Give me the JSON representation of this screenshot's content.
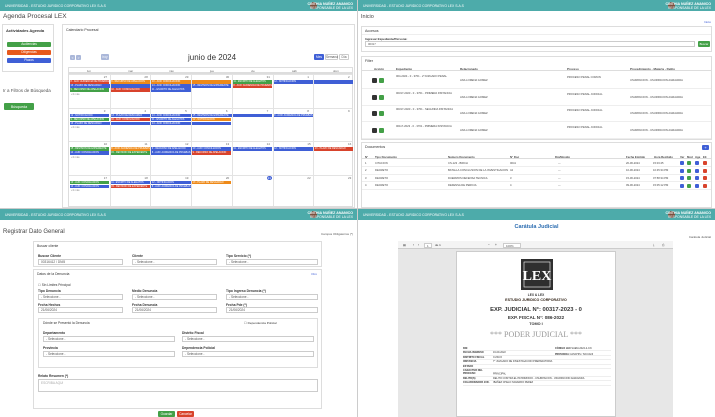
{
  "app": {
    "brand": "UNIVERSIDAD - ESTUDIO JURIDICO CORPORATIVO LEX S.A.S",
    "user_name": "CINTHIA NUÑEZ ANANICO",
    "user_role": "RESPONSABLE DE LA LEX"
  },
  "q1": {
    "page_title": "Agenda Procesal LEX",
    "side_title": "Actividades Agenda",
    "side_buttons": [
      "Audiencias",
      "Diligencias",
      "Plazos"
    ],
    "filter_label": "Ir a Filtros de Búsqueda",
    "search_label": "Búsqueda",
    "cal_header": "Calendario Procesal",
    "month": "junio de 2024",
    "nav": [
      "<",
      ">",
      "hoy"
    ],
    "views": [
      "Mes",
      "Semana",
      "Día"
    ],
    "days": [
      "lun",
      "mar",
      "mié",
      "jue",
      "vie",
      "sáb",
      "dom"
    ],
    "weeks": [
      {
        "dates": [
          "27",
          "28",
          "29",
          "30",
          "31",
          "1",
          "2"
        ]
      },
      {
        "dates": [
          "3",
          "4",
          "5",
          "6",
          "7",
          "8",
          "9"
        ]
      },
      {
        "dates": [
          "10",
          "11",
          "12",
          "13",
          "14",
          "15",
          "16"
        ]
      },
      {
        "dates": [
          "17",
          "18",
          "19",
          "20",
          "21",
          "22",
          "23"
        ]
      }
    ],
    "more": "+3 más",
    "ev_text": {
      "a": "8 - AUD: AUDIENCIA DE PRUEBAS",
      "b": "9 - RECURSO DE APELACION",
      "c": "10 - AUD: CONCILIACION",
      "d": "11 - ESCRITO DE ALEGATOS",
      "e": "12 - NOTIFICACION",
      "f": "13 - PLAZO DE DESCARGO",
      "g": "14 - AUD: CONCILIACION",
      "h": "15 - REVISION DE EXPEDIENTE"
    }
  },
  "q2": {
    "page_title": "Inicio",
    "crumb": "Inicio",
    "acc_title": "Accesos",
    "exp_label": "Ingresar Expediente/Persona:",
    "exp_value": "00317",
    "search_btn": "Buscar",
    "filter_title": "Filter",
    "headers": [
      "Acción",
      "Expediente",
      "Relacionado",
      "Proceso",
      "Procedimiento - Materia - Delito"
    ],
    "rows": [
      {
        "exp": "004-2024 - 0 - 3701 - 2°JUZGADO PENAL",
        "rel": "ANA LORENA GOMEZ",
        "proc": "PROCESO PENAL COMUN",
        "pm": "USURPACION - USURPACION AGRAVADA"
      },
      {
        "exp": "00317-2023 - 0 - 3701 - PRIMERA INSTANCIA",
        "rel": "ANA LORENA GOMEZ",
        "proc": "PROCESO PENAL JUDICIAL",
        "pm": "USURPACION - USURPACION AGRAVADA"
      },
      {
        "exp": "00317-2023 - 0 - 3701 - SEGUNDA INSTANCIA",
        "rel": "ANA LORENA GOMEZ",
        "proc": "PROCESO PENAL JUDICIAL",
        "pm": "USURPACION - USURPACION AGRAVADA"
      },
      {
        "exp": "00117-2023 - 0 - 3701 - PRIMERA INSTANCIA",
        "rel": "ANA LORENA GOMEZ",
        "proc": "PROCESO PENAL JUDICIAL",
        "pm": "USURPACION - USURPACION AGRAVADA"
      }
    ],
    "docs_title": "Documentos",
    "doc_headers": [
      "N°",
      "Tipo Documento",
      "Numero Documento",
      "N° Doc",
      "Dio/Movido",
      "Fecha Emitido",
      "Hora Recibido",
      "Ver",
      "Mod",
      "Age",
      "Eli"
    ],
    "docs": [
      {
        "n": "1",
        "tipo": "CITACION",
        "num": "CS-123 - BIRCH",
        "nd": "0041",
        "dio": "---",
        "fe": "20-06-2024",
        "hr": "15:03:45"
      },
      {
        "n": "2",
        "tipo": "DECRETO",
        "num": "BATALLA CONCLUSION DE LA INVESTIGACION",
        "nd": "44",
        "dio": "---",
        "fe": "10-06-2024",
        "hr": "10:45:34 PM"
      },
      {
        "n": "3",
        "tipo": "DECRETO",
        "num": "DUERMOS DEFENSA TECNICA",
        "nd": "3",
        "dio": "---",
        "fe": "15-06-2024",
        "hr": "07:58:34 PM"
      },
      {
        "n": "4",
        "tipo": "DECRETO",
        "num": "DEFENSA DE PERICIA",
        "nd": "4",
        "dio": "---",
        "fe": "09-06-2024",
        "hr": "15:05:12 PM"
      }
    ]
  },
  "q3": {
    "page_title": "Registrar Dato General",
    "required_note": "Campos Obligatorios (*)",
    "sec1": "Buscar cliente",
    "dni_label": "Buscar Cliente",
    "dni_value": "00316412 / DNI5",
    "cliente_label": "Cliente",
    "cliente_value": "- Seleccione -",
    "tipo_label": "Tipo Servicio (*)",
    "tipo_value": "- Seleccione -",
    "sec2": "Datos de la Denuncia",
    "save_label": "Guardar",
    "otra_label": "Otro",
    "chk_label": "Sin Limites Principal",
    "f_tipo_denuncia": "Tipo Denuncia",
    "f_medio": "Medio Denuncia",
    "f_tipo_ingreso": "Tipo Ingreso Denuncia (*)",
    "sel": "- Seleccione -",
    "f_hechos": "Fecha Hechos",
    "v_hechos": "21/06/2024",
    "f_denuncia": "Fecha Denuncia",
    "v_denuncia": "21/06/2024",
    "f_plazo": "Fecha Pde (*)",
    "v_plazo": "21/06/2024",
    "sec3": "Dónde se Presentó la Denuncia",
    "chk2": "Dependencia Policial",
    "f_dep": "Departamento",
    "f_dist": "Distrito Fiscal",
    "f_prov": "Provincia",
    "f_depol": "Dependencia Policial",
    "f_relato": "Relato Resumen (*)",
    "relato_ph": "ESCRIBA AQUI",
    "btn_save": "Guardar",
    "btn_cancel": "Cancelar"
  },
  "q4": {
    "page_title": "Carátula Judicial",
    "crumb1": "Carátula Judicial",
    "crumb2": "Carátula Judicial",
    "page_num": "1",
    "page_total": "de 1",
    "zoom": "100%",
    "firm": "ESTUDIO JURIDICO CORPORATIVO",
    "lex": "LEX & LEX",
    "exp_judicial": "EXP. JUDICIAL N°: 00317-2023 - 0",
    "exp_fiscal": "EXP. FISCAL N°: 086-2022",
    "tomo": "TOMO I",
    "poder": "*** PODER JUDICIAL ***",
    "fields": [
      {
        "k": "DNI",
        "v": ""
      },
      {
        "k": "FECHA INGRESO",
        "v": "16-09-2022"
      },
      {
        "k": "DISTRITO FISCAL",
        "v": "CUSCO"
      },
      {
        "k": "INSTANCIA",
        "v": "7° JUZGADO DE INVESTIGACION PREPARATORIA"
      },
      {
        "k": "ESTADO",
        "v": ""
      },
      {
        "k": "CARACTER DEL PROCESO",
        "v": "PRINCIPAL"
      },
      {
        "k": "DELITO(S)",
        "v": "DELITO CONTRA EL PATRIMONIO - USURPACION - USURPACION AGRAVADA"
      },
      {
        "k": "COLABORADOR JUD.",
        "v": "IBAÑEZ CHELO NAVARRO PEREZ"
      }
    ],
    "field_right": [
      {
        "k": "CÓDIGO LEX",
        "v": "SAEM-2024-2-CN"
      },
      {
        "k": "PROVINCIA",
        "v": "CANCHIS / SICUANI"
      }
    ]
  },
  "colors": {
    "teal": "#4dabaa",
    "blue": "#3f5fd6",
    "green": "#43a047",
    "red": "#d8432c"
  }
}
